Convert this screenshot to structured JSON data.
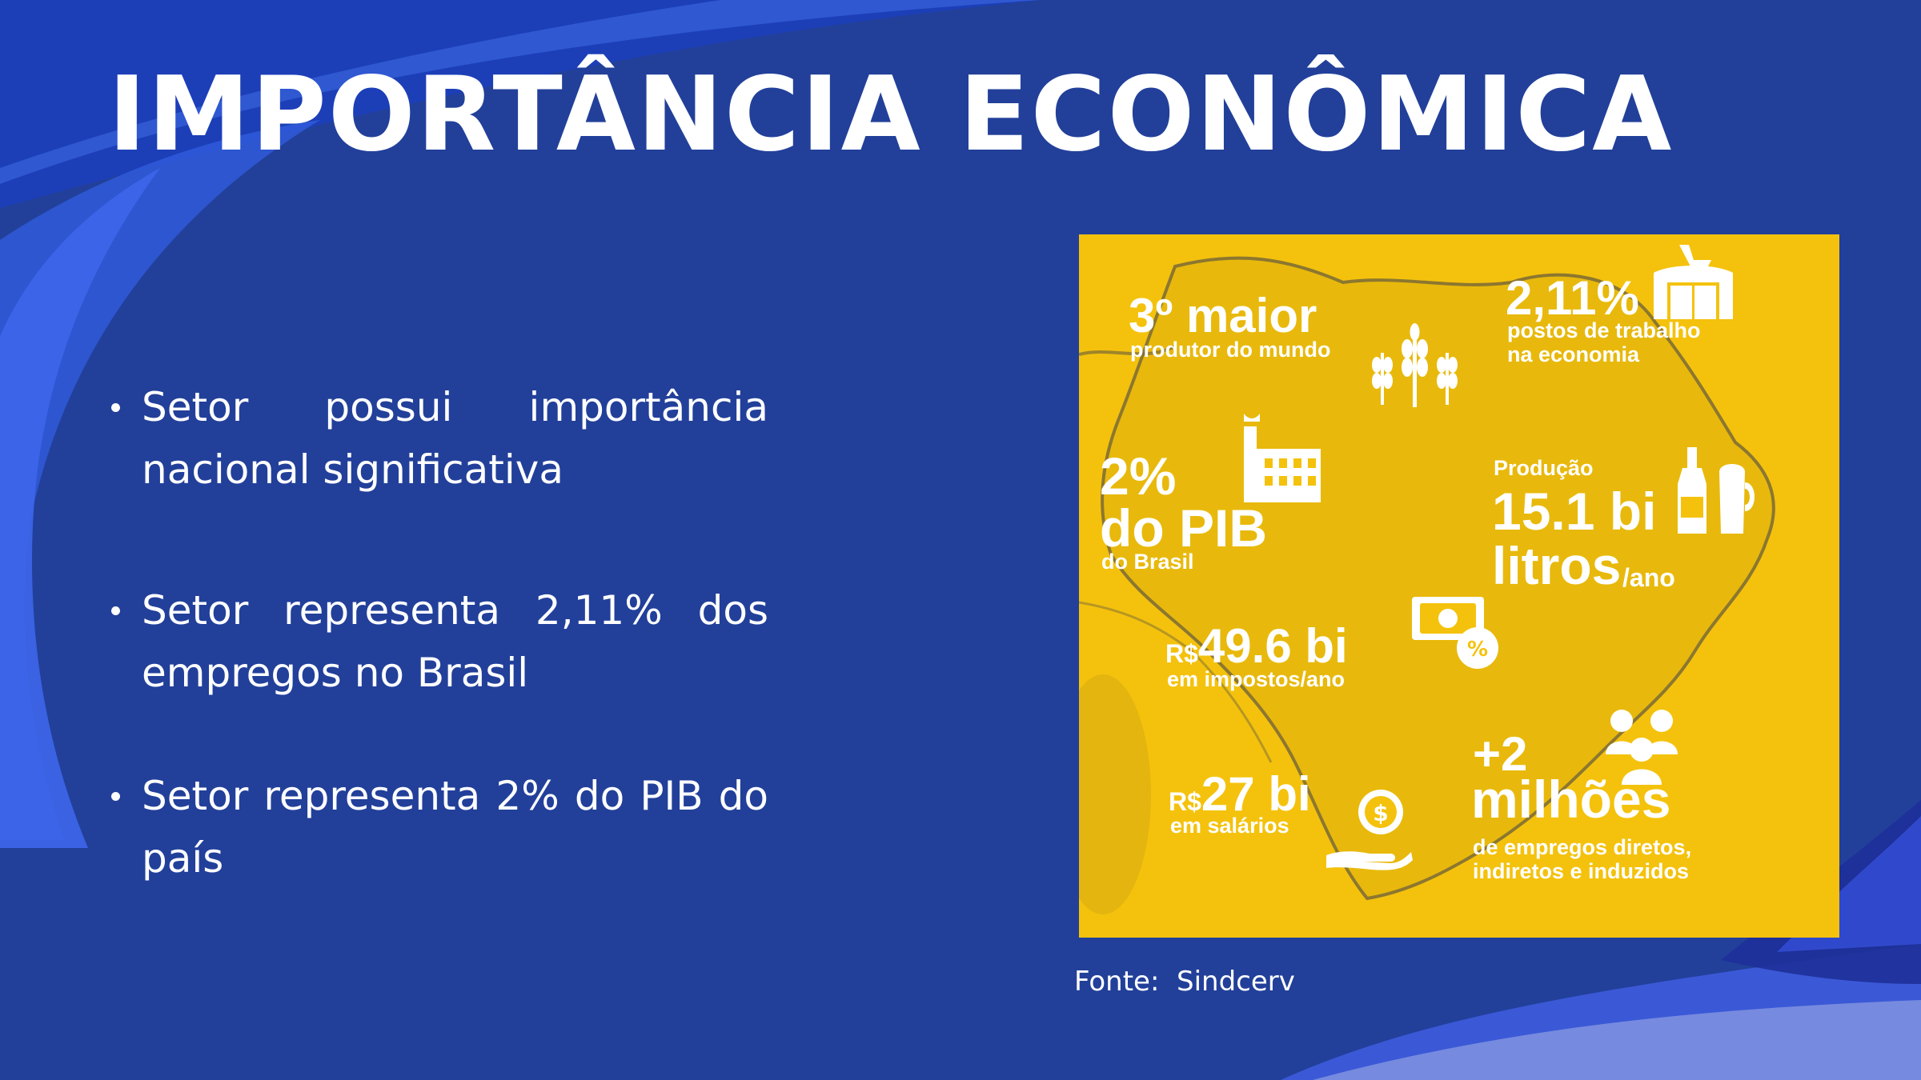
{
  "slide": {
    "title": "IMPORTÂNCIA ECONÔMICA",
    "bullets": [
      "Setor possui importância nacional significativa",
      "Setor representa 2,11% dos empregos no Brasil",
      "Setor representa 2% do PIB do país"
    ],
    "source": "Fonte:  Sindcerv"
  },
  "infographic": {
    "producer": {
      "value": "3º maior",
      "caption": "produtor do mundo"
    },
    "jobs_share": {
      "value": "2,11%",
      "caption_1": "postos de trabalho",
      "caption_2": "na economia"
    },
    "gdp": {
      "value_1": "2%",
      "value_2": "do PIB",
      "caption": "do Brasil"
    },
    "production": {
      "label": "Produção",
      "value_1": "15.1 bi",
      "value_2": "litros",
      "unit": "/ano"
    },
    "taxes": {
      "currency": "R$",
      "value": "49.6 bi",
      "caption": "em impostos/ano"
    },
    "salaries": {
      "currency": "R$",
      "value": "27 bi",
      "caption": "em salários"
    },
    "employment": {
      "value_1": "+2",
      "value_2": "milhões",
      "caption_1": "de empregos diretos,",
      "caption_2": "indiretos e induzidos"
    }
  },
  "colors": {
    "background": "#22409a",
    "accent_wave": "#3a5ce0",
    "infographic_bg": "#f4c20d",
    "text": "#ffffff"
  }
}
